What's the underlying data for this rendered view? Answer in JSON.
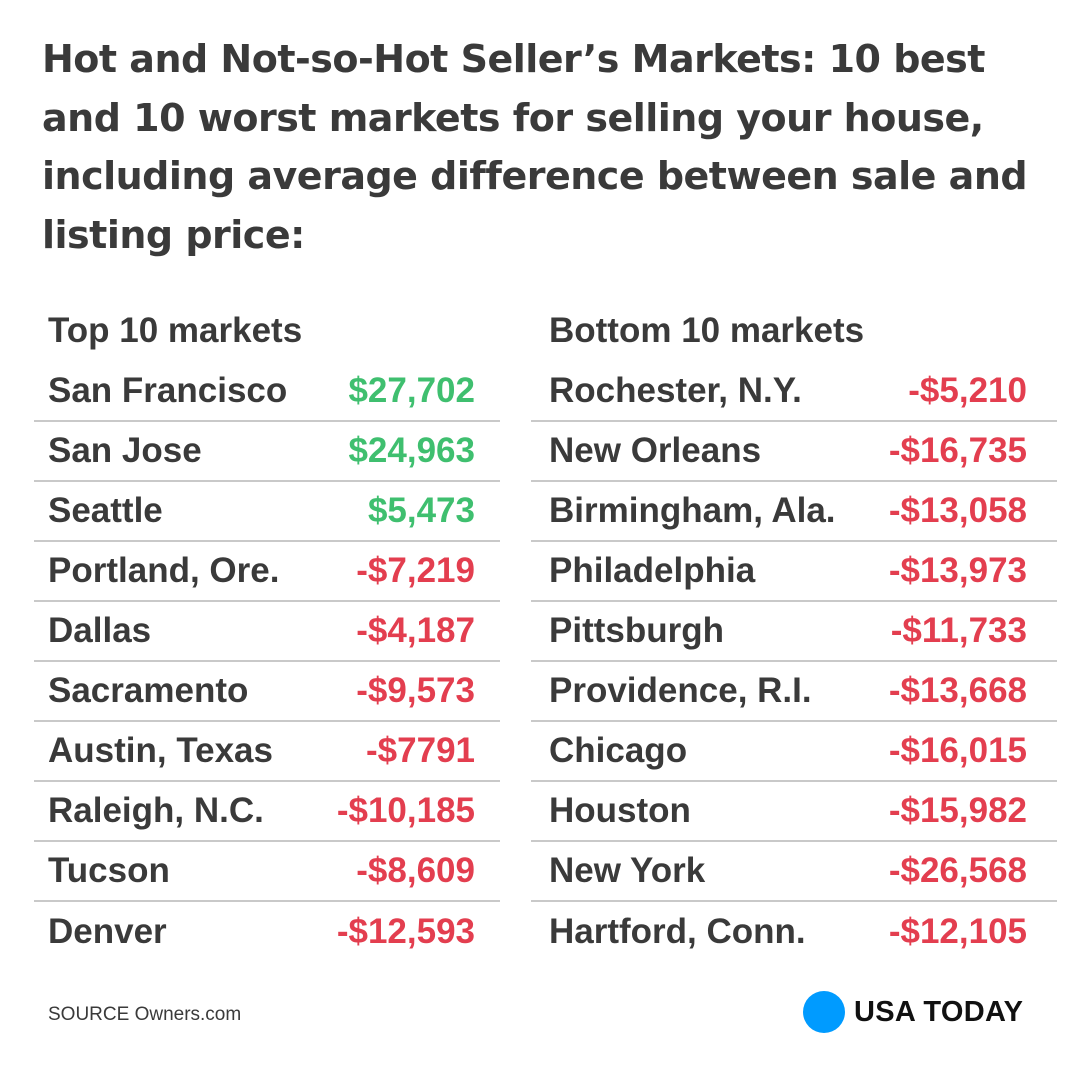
{
  "title": "Hot and Not-so-Hot Seller’s Markets: 10 best and 10 worst markets for selling your house, including average difference between sale and listing price:",
  "source": "SOURCE Owners.com",
  "brand": "USA TODAY",
  "colors": {
    "positive": "#3fbf6f",
    "negative": "#e33e4f",
    "brand_dot": "#009bff",
    "text": "#3a3a3a"
  },
  "chart_data": {
    "type": "table",
    "columns": [
      {
        "heading": "Top 10 markets",
        "rows": [
          {
            "city": "San Francisco",
            "value": "$27,702",
            "amount": 27702
          },
          {
            "city": "San Jose",
            "value": "$24,963",
            "amount": 24963
          },
          {
            "city": "Seattle",
            "value": "$5,473",
            "amount": 5473
          },
          {
            "city": "Portland, Ore.",
            "value": "-$7,219",
            "amount": -7219
          },
          {
            "city": "Dallas",
            "value": "-$4,187",
            "amount": -4187
          },
          {
            "city": "Sacramento",
            "value": "-$9,573",
            "amount": -9573
          },
          {
            "city": "Austin, Texas",
            "value": "-$7791",
            "amount": -7791
          },
          {
            "city": "Raleigh, N.C.",
            "value": "-$10,185",
            "amount": -10185
          },
          {
            "city": "Tucson",
            "value": "-$8,609",
            "amount": -8609
          },
          {
            "city": "Denver",
            "value": "-$12,593",
            "amount": -12593
          }
        ]
      },
      {
        "heading": "Bottom 10 markets",
        "rows": [
          {
            "city": "Rochester, N.Y.",
            "value": "-$5,210",
            "amount": -5210
          },
          {
            "city": "New Orleans",
            "value": "-$16,735",
            "amount": -16735
          },
          {
            "city": "Birmingham, Ala.",
            "value": "-$13,058",
            "amount": -13058
          },
          {
            "city": "Philadelphia",
            "value": "-$13,973",
            "amount": -13973
          },
          {
            "city": "Pittsburgh",
            "value": "-$11,733",
            "amount": -11733
          },
          {
            "city": "Providence, R.I.",
            "value": "-$13,668",
            "amount": -13668
          },
          {
            "city": "Chicago",
            "value": "-$16,015",
            "amount": -16015
          },
          {
            "city": "Houston",
            "value": "-$15,982",
            "amount": -15982
          },
          {
            "city": "New York",
            "value": "-$26,568",
            "amount": -26568
          },
          {
            "city": "Hartford, Conn.",
            "value": "-$12,105",
            "amount": -12105
          }
        ]
      }
    ]
  }
}
